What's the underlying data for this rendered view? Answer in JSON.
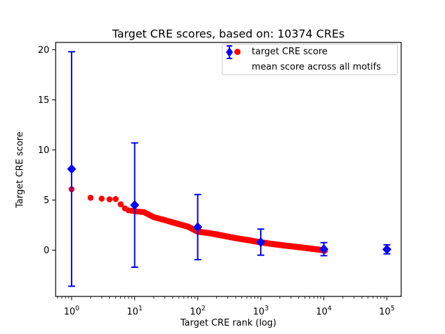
{
  "chart_data": {
    "type": "scatter",
    "title": "Target CRE scores, based on: 10374 CREs",
    "xlabel": "Target CRE rank (log)",
    "ylabel": "Target CRE score",
    "x_scale": "log",
    "xlim_log10": [
      -0.2536,
      5.2264
    ],
    "ylim": [
      -4.62,
      20.73
    ],
    "yticks": [
      0,
      5,
      10,
      15,
      20
    ],
    "xticks": [
      {
        "base": "10",
        "exp": "0"
      },
      {
        "base": "10",
        "exp": "1"
      },
      {
        "base": "10",
        "exp": "2"
      },
      {
        "base": "10",
        "exp": "3"
      },
      {
        "base": "10",
        "exp": "4"
      },
      {
        "base": "10",
        "exp": "5"
      }
    ],
    "grid": false,
    "colors": {
      "red": "#ff0000",
      "blue": "#0000ff",
      "frame": "#000000",
      "legend_edge": "#cccccc",
      "text": "#000000"
    },
    "series": [
      {
        "name": "target CRE score",
        "marker": "circle",
        "color": "#ff0000",
        "total_points": 10374,
        "anchors_rank_score": [
          [
            1,
            6.08
          ],
          [
            2,
            5.23
          ],
          [
            3,
            5.14
          ],
          [
            4,
            5.07
          ],
          [
            5,
            5.1
          ],
          [
            6,
            4.58
          ],
          [
            7,
            4.17
          ],
          [
            8,
            3.98
          ],
          [
            9,
            3.93
          ],
          [
            10,
            3.88
          ],
          [
            14,
            3.8
          ],
          [
            20,
            3.3
          ],
          [
            32,
            2.95
          ],
          [
            50,
            2.6
          ],
          [
            70,
            2.35
          ],
          [
            100,
            1.85
          ],
          [
            160,
            1.68
          ],
          [
            250,
            1.45
          ],
          [
            400,
            1.2
          ],
          [
            630,
            1.0
          ],
          [
            1000,
            0.78
          ],
          [
            1600,
            0.6
          ],
          [
            2500,
            0.45
          ],
          [
            4000,
            0.3
          ],
          [
            6300,
            0.15
          ],
          [
            8000,
            0.07
          ],
          [
            10374,
            -0.05
          ]
        ]
      },
      {
        "name": "mean score across all motifs",
        "marker": "diamond",
        "color": "#0000ff",
        "points": [
          {
            "rank": 1,
            "mean": 8.1,
            "err": 11.7
          },
          {
            "rank": 10,
            "mean": 4.5,
            "err": 6.2
          },
          {
            "rank": 100,
            "mean": 2.3,
            "err": 3.25
          },
          {
            "rank": 1000,
            "mean": 0.8,
            "err": 1.3
          },
          {
            "rank": 10000,
            "mean": 0.1,
            "err": 0.65
          },
          {
            "rank": 100000,
            "mean": 0.08,
            "err": 0.45
          }
        ]
      }
    ],
    "legend": {
      "position": "upper right",
      "entries": [
        "target CRE score",
        "mean score across all motifs"
      ]
    }
  }
}
